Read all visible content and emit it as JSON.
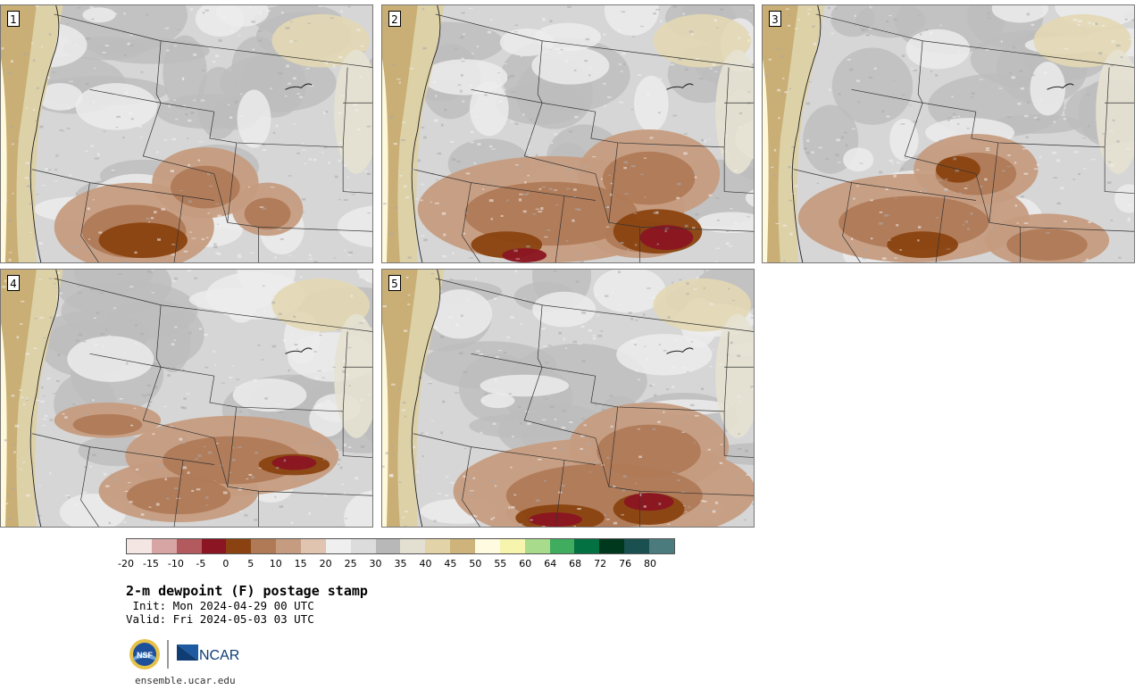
{
  "panels": [
    {
      "label": "1"
    },
    {
      "label": "2"
    },
    {
      "label": "3"
    },
    {
      "label": "4"
    },
    {
      "label": "5"
    }
  ],
  "colorbar": {
    "colors": [
      "#f3e6e3",
      "#d8a5a5",
      "#b25a5d",
      "#8b1522",
      "#8a4310",
      "#b07a57",
      "#c69c80",
      "#e0c4b0",
      "#efefef",
      "#dcdcdc",
      "#b8b8b8",
      "#e3e0d2",
      "#e3d3a8",
      "#ceb47a",
      "#fffbe0",
      "#f6f4ad",
      "#a8dc8c",
      "#3fac5f",
      "#037141",
      "#00381e",
      "#1b5050",
      "#4c7b7d"
    ],
    "ticks": [
      "-20",
      "-15",
      "-10",
      "-5",
      "0",
      "5",
      "10",
      "15",
      "20",
      "25",
      "30",
      "35",
      "40",
      "45",
      "50",
      "55",
      "60",
      "64",
      "68",
      "72",
      "76",
      "80"
    ]
  },
  "title": "2-m dewpoint (F) postage stamp",
  "init": " Init: Mon 2024-04-29 00 UTC",
  "valid": "Valid: Fri 2024-05-03 03 UTC",
  "logo": {
    "nsf": "NSF",
    "ncar": "NCAR"
  },
  "url": "ensemble.ucar.edu"
}
